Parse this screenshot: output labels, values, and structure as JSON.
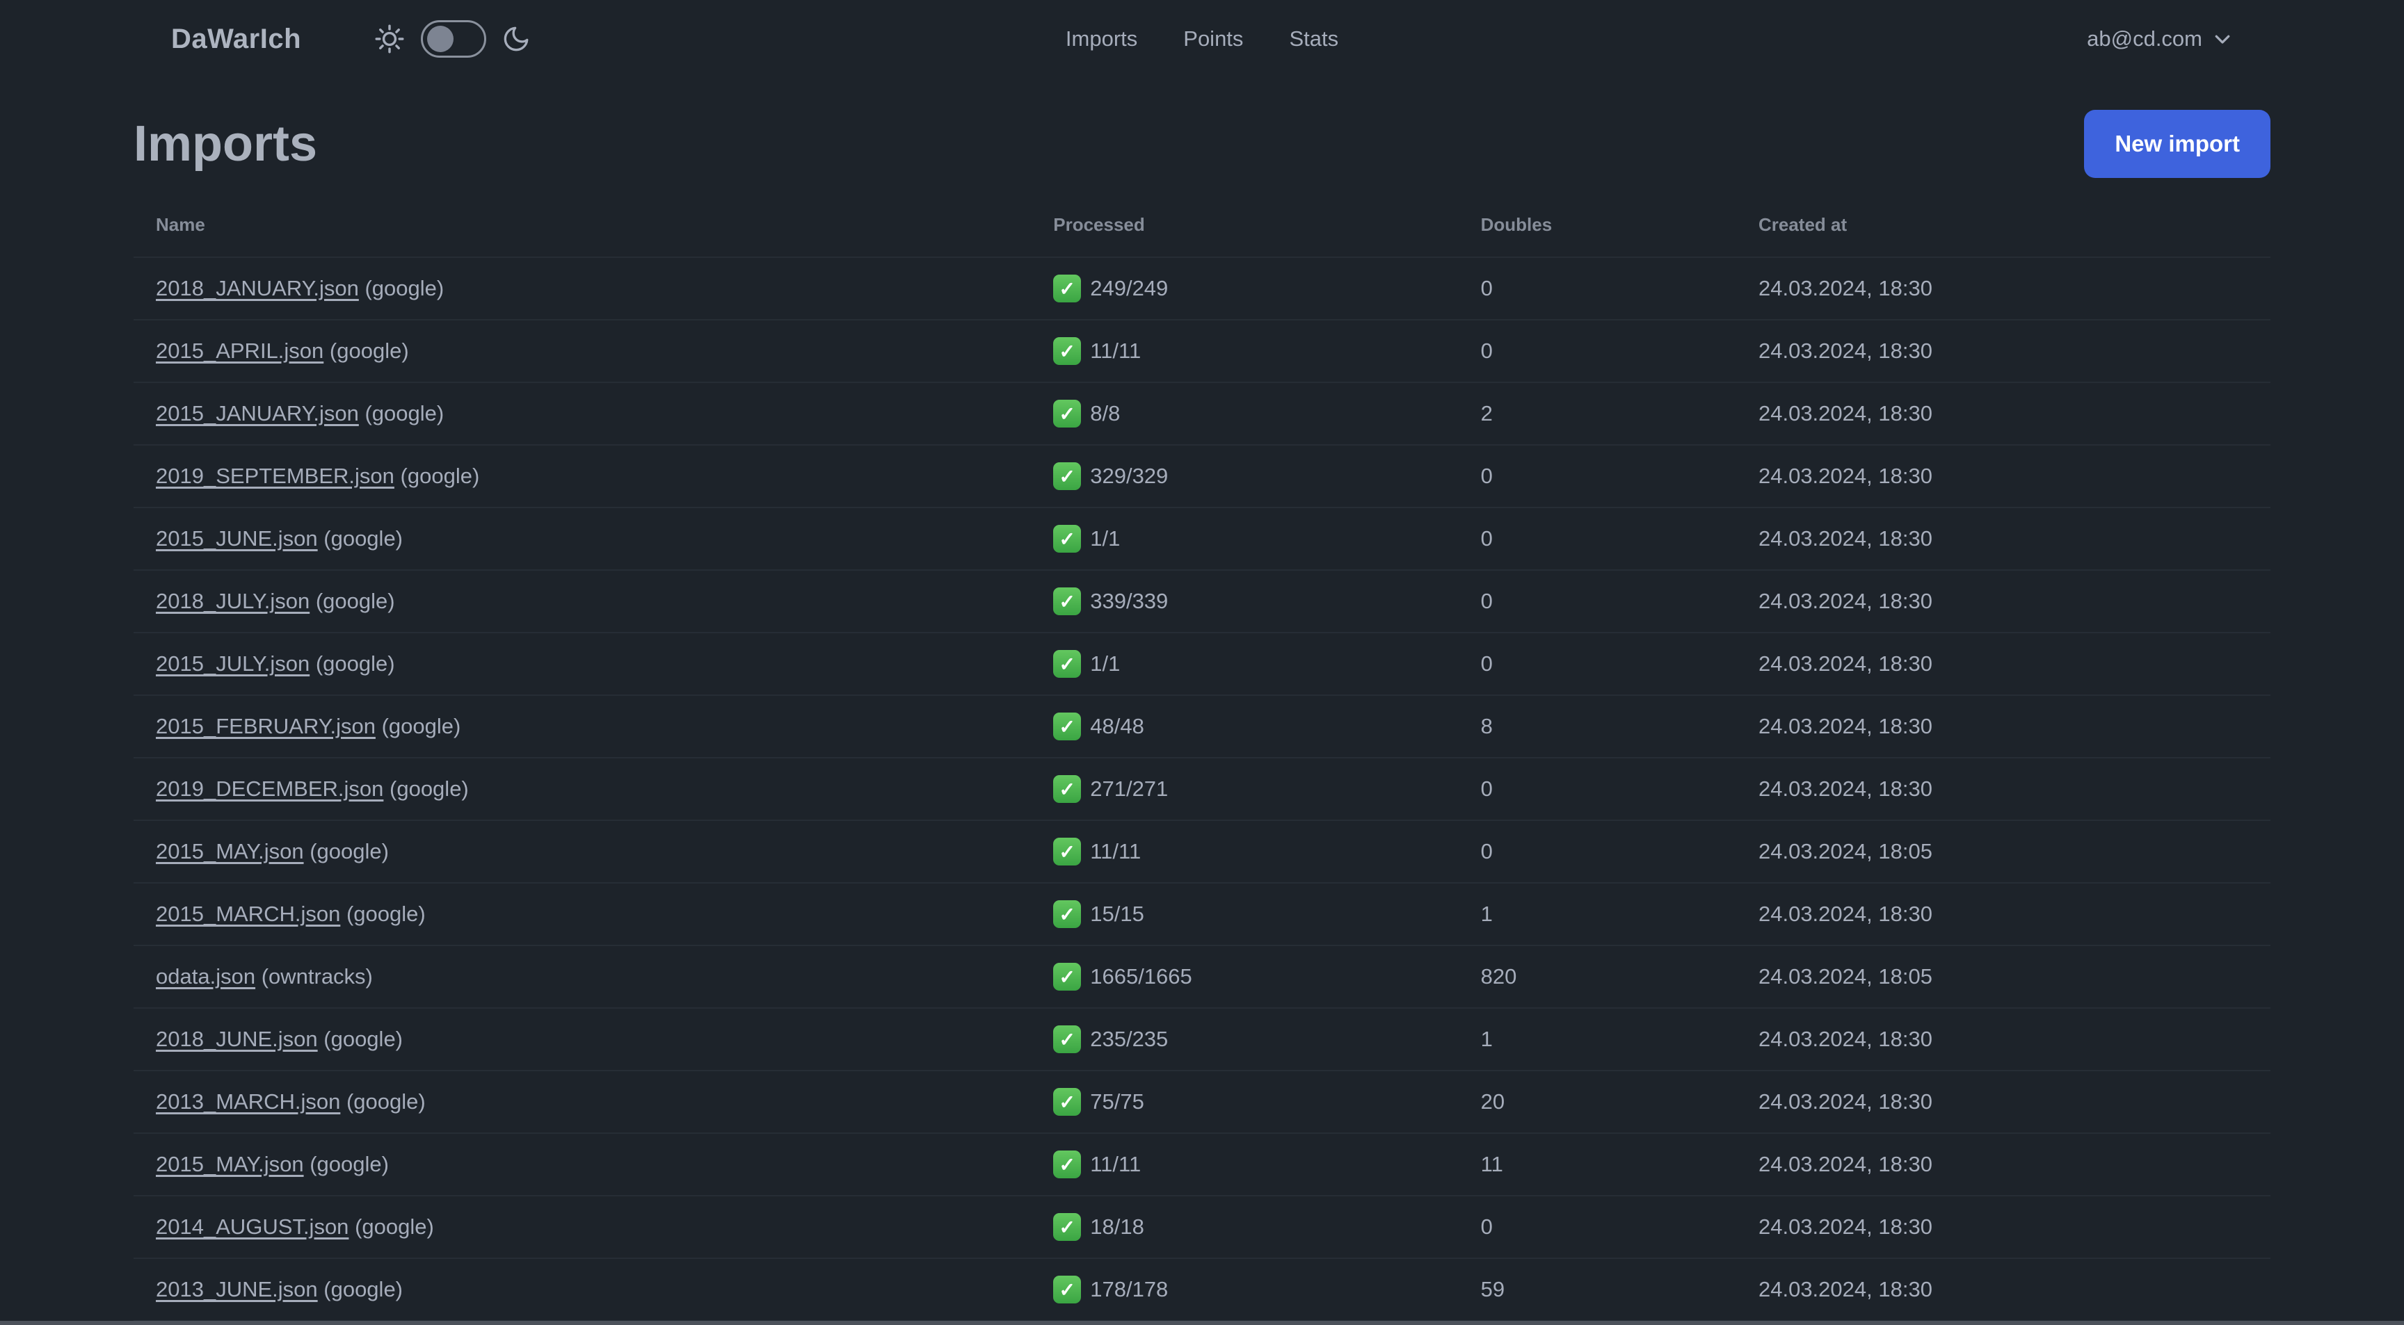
{
  "app": {
    "name": "DaWarIch"
  },
  "navbar": {
    "links": [
      {
        "label": "Imports"
      },
      {
        "label": "Points"
      },
      {
        "label": "Stats"
      }
    ],
    "theme_toggle": {
      "checked": false
    },
    "account": {
      "email": "ab@cd.com"
    }
  },
  "page": {
    "title": "Imports",
    "new_import_label": "New import"
  },
  "table": {
    "columns": [
      "Name",
      "Processed",
      "Doubles",
      "Created at"
    ],
    "rows": [
      {
        "name": "2018_JANUARY.json",
        "source": "(google)",
        "processed": "249/249",
        "doubles": "0",
        "created_at": "24.03.2024, 18:30"
      },
      {
        "name": "2015_APRIL.json",
        "source": "(google)",
        "processed": "11/11",
        "doubles": "0",
        "created_at": "24.03.2024, 18:30"
      },
      {
        "name": "2015_JANUARY.json",
        "source": "(google)",
        "processed": "8/8",
        "doubles": "2",
        "created_at": "24.03.2024, 18:30"
      },
      {
        "name": "2019_SEPTEMBER.json",
        "source": "(google)",
        "processed": "329/329",
        "doubles": "0",
        "created_at": "24.03.2024, 18:30"
      },
      {
        "name": "2015_JUNE.json",
        "source": "(google)",
        "processed": "1/1",
        "doubles": "0",
        "created_at": "24.03.2024, 18:30"
      },
      {
        "name": "2018_JULY.json",
        "source": "(google)",
        "processed": "339/339",
        "doubles": "0",
        "created_at": "24.03.2024, 18:30"
      },
      {
        "name": "2015_JULY.json",
        "source": "(google)",
        "processed": "1/1",
        "doubles": "0",
        "created_at": "24.03.2024, 18:30"
      },
      {
        "name": "2015_FEBRUARY.json",
        "source": "(google)",
        "processed": "48/48",
        "doubles": "8",
        "created_at": "24.03.2024, 18:30"
      },
      {
        "name": "2019_DECEMBER.json",
        "source": "(google)",
        "processed": "271/271",
        "doubles": "0",
        "created_at": "24.03.2024, 18:30"
      },
      {
        "name": "2015_MAY.json",
        "source": "(google)",
        "processed": "11/11",
        "doubles": "0",
        "created_at": "24.03.2024, 18:05"
      },
      {
        "name": "2015_MARCH.json",
        "source": "(google)",
        "processed": "15/15",
        "doubles": "1",
        "created_at": "24.03.2024, 18:30"
      },
      {
        "name": "odata.json",
        "source": "(owntracks)",
        "processed": "1665/1665",
        "doubles": "820",
        "created_at": "24.03.2024, 18:05"
      },
      {
        "name": "2018_JUNE.json",
        "source": "(google)",
        "processed": "235/235",
        "doubles": "1",
        "created_at": "24.03.2024, 18:30"
      },
      {
        "name": "2013_MARCH.json",
        "source": "(google)",
        "processed": "75/75",
        "doubles": "20",
        "created_at": "24.03.2024, 18:30"
      },
      {
        "name": "2015_MAY.json",
        "source": "(google)",
        "processed": "11/11",
        "doubles": "11",
        "created_at": "24.03.2024, 18:30"
      },
      {
        "name": "2014_AUGUST.json",
        "source": "(google)",
        "processed": "18/18",
        "doubles": "0",
        "created_at": "24.03.2024, 18:30"
      },
      {
        "name": "2013_JUNE.json",
        "source": "(google)",
        "processed": "178/178",
        "doubles": "59",
        "created_at": "24.03.2024, 18:30"
      }
    ],
    "partial_row": {
      "check_icon_visible": true
    },
    "status_icon": "check"
  },
  "colors": {
    "background": "#1d232a",
    "text": "#a6adbb",
    "primary": "#3e63dd",
    "success_green": "#4caf50",
    "divider": "#262d35"
  }
}
